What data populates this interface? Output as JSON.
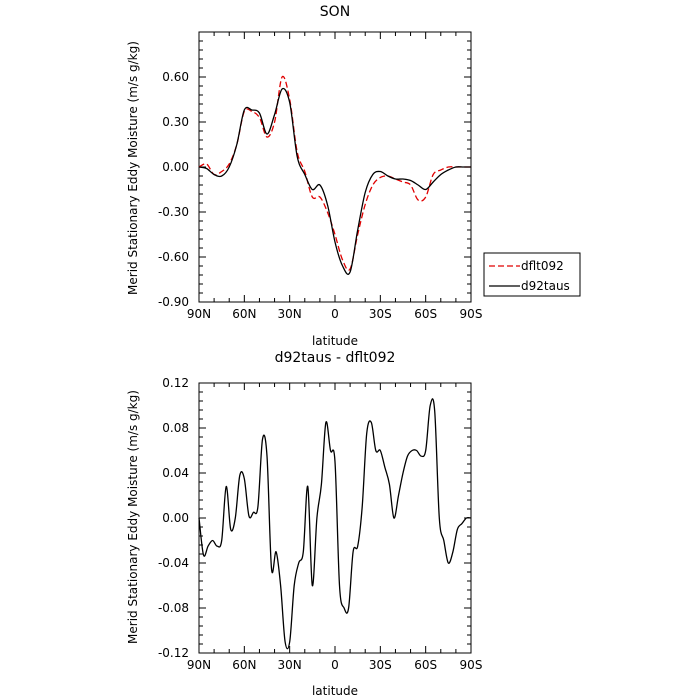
{
  "chart_data": [
    {
      "type": "line",
      "title": "SON",
      "xlabel": "latitude",
      "ylabel": "Merid Stationary Eddy Moisture (m/s g/kg)",
      "x": [
        90,
        85,
        80,
        75,
        70,
        65,
        60,
        55,
        50,
        45,
        40,
        35,
        30,
        25,
        20,
        15,
        10,
        5,
        0,
        -5,
        -10,
        -15,
        -20,
        -25,
        -30,
        -35,
        -40,
        -45,
        -50,
        -55,
        -60,
        -65,
        -70,
        -75,
        -80,
        -85,
        -90
      ],
      "xticks": [
        90,
        60,
        30,
        0,
        -30,
        -60,
        -90
      ],
      "xticklabels": [
        "90N",
        "60N",
        "30N",
        "0",
        "30S",
        "60S",
        "90S"
      ],
      "xlim": [
        90,
        -90
      ],
      "ylim": [
        -0.9,
        0.9
      ],
      "yticks": [
        -0.9,
        -0.6,
        -0.3,
        0.0,
        0.3,
        0.6
      ],
      "yticklabels": [
        "-0.90",
        "-0.60",
        "-0.30",
        "0.00",
        "0.30",
        "0.60"
      ],
      "legend_position": "right",
      "series": [
        {
          "name": "dflt092",
          "color": "#e00000",
          "dashed": true,
          "values": [
            0.0,
            0.02,
            -0.05,
            -0.03,
            0.02,
            0.15,
            0.37,
            0.37,
            0.33,
            0.2,
            0.3,
            0.6,
            0.45,
            0.1,
            -0.03,
            -0.2,
            -0.2,
            -0.3,
            -0.45,
            -0.62,
            -0.68,
            -0.45,
            -0.25,
            -0.12,
            -0.07,
            -0.06,
            -0.08,
            -0.1,
            -0.12,
            -0.22,
            -0.2,
            -0.05,
            -0.02,
            0.0,
            0.0,
            0.0,
            0.0
          ]
        },
        {
          "name": "d92taus",
          "color": "#000000",
          "dashed": false,
          "values": [
            0.0,
            -0.01,
            -0.05,
            -0.06,
            0.0,
            0.15,
            0.38,
            0.38,
            0.36,
            0.22,
            0.35,
            0.52,
            0.43,
            0.07,
            -0.05,
            -0.15,
            -0.12,
            -0.25,
            -0.5,
            -0.66,
            -0.7,
            -0.42,
            -0.17,
            -0.05,
            -0.03,
            -0.06,
            -0.08,
            -0.08,
            -0.09,
            -0.12,
            -0.15,
            -0.1,
            -0.05,
            -0.02,
            0.0,
            0.0,
            0.0
          ]
        }
      ]
    },
    {
      "type": "line",
      "title": "d92taus - dflt092",
      "xlabel": "latitude",
      "ylabel": "Merid Stationary Eddy Moisture (m/s g/kg)",
      "x": [
        90,
        87,
        84,
        81,
        78,
        75,
        72,
        69,
        66,
        63,
        60,
        57,
        54,
        51,
        48,
        45,
        42,
        39,
        36,
        33,
        30,
        27,
        24,
        21,
        18,
        15,
        12,
        9,
        6,
        3,
        0,
        -3,
        -6,
        -9,
        -12,
        -15,
        -18,
        -21,
        -24,
        -27,
        -30,
        -33,
        -36,
        -39,
        -42,
        -45,
        -48,
        -51,
        -54,
        -57,
        -60,
        -63,
        -66,
        -69,
        -72,
        -75,
        -78,
        -81,
        -84,
        -87,
        -90
      ],
      "xticks": [
        90,
        60,
        30,
        0,
        -30,
        -60,
        -90
      ],
      "xticklabels": [
        "90N",
        "60N",
        "30N",
        "0",
        "30S",
        "60S",
        "90S"
      ],
      "xlim": [
        90,
        -90
      ],
      "ylim": [
        -0.12,
        0.12
      ],
      "yticks": [
        -0.12,
        -0.08,
        -0.04,
        0.0,
        0.04,
        0.08,
        0.12
      ],
      "yticklabels": [
        "-0.12",
        "-0.08",
        "-0.04",
        "0.00",
        "0.04",
        "0.08",
        "0.12"
      ],
      "series": [
        {
          "name": "d92taus - dflt092",
          "color": "#000000",
          "dashed": false,
          "values": [
            0.0,
            -0.033,
            -0.025,
            -0.02,
            -0.025,
            -0.02,
            0.028,
            -0.01,
            0.0,
            0.038,
            0.035,
            0.002,
            0.005,
            0.01,
            0.07,
            0.055,
            -0.045,
            -0.03,
            -0.06,
            -0.11,
            -0.11,
            -0.06,
            -0.04,
            -0.03,
            0.028,
            -0.06,
            0.0,
            0.03,
            0.085,
            0.06,
            0.05,
            -0.06,
            -0.08,
            -0.08,
            -0.03,
            -0.025,
            0.01,
            0.075,
            0.085,
            0.06,
            0.06,
            0.045,
            0.03,
            0.0,
            0.02,
            0.04,
            0.055,
            0.06,
            0.06,
            0.055,
            0.06,
            0.1,
            0.095,
            0.0,
            -0.02,
            -0.04,
            -0.03,
            -0.01,
            -0.005,
            0.0,
            0.0
          ]
        }
      ]
    }
  ]
}
